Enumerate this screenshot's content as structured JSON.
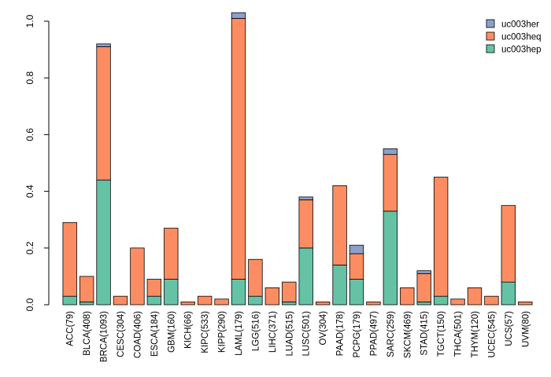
{
  "chart_data": {
    "type": "bar",
    "stacked": true,
    "title": "",
    "xlabel": "",
    "ylabel": "",
    "ylim": [
      0,
      1.0
    ],
    "yticks": [
      "0.0",
      "0.2",
      "0.4",
      "0.6",
      "0.8",
      "1.0"
    ],
    "ytick_values": [
      0,
      0.2,
      0.4,
      0.6,
      0.8,
      1.0
    ],
    "legend_position": "top-right",
    "categories": [
      "ACC(79)",
      "BLCA(408)",
      "BRCA(1093)",
      "CESC(304)",
      "COAD(406)",
      "ESCA(184)",
      "GBM(160)",
      "KICH(66)",
      "KIPC(533)",
      "KIPP(290)",
      "LAML(179)",
      "LGG(516)",
      "LIHC(371)",
      "LUAD(515)",
      "LUSC(501)",
      "OV(304)",
      "PAAD(178)",
      "PCPG(179)",
      "PPAD(497)",
      "SARC(259)",
      "SKCM(469)",
      "STAD(415)",
      "TGCT(150)",
      "THCA(501)",
      "THYM(120)",
      "UCEC(545)",
      "UCS(57)",
      "UVM(80)"
    ],
    "series": [
      {
        "name": "uc003hep",
        "color": "#66c2a5",
        "values": [
          0.03,
          0.01,
          0.44,
          0.0,
          0.0,
          0.03,
          0.09,
          0.0,
          0.0,
          0.0,
          0.09,
          0.03,
          0.0,
          0.01,
          0.2,
          0.0,
          0.14,
          0.09,
          0.0,
          0.33,
          0.0,
          0.01,
          0.03,
          0.0,
          0.0,
          0.0,
          0.08,
          0.0
        ]
      },
      {
        "name": "uc003heq",
        "color": "#fc8d62",
        "values": [
          0.26,
          0.09,
          0.47,
          0.03,
          0.2,
          0.06,
          0.18,
          0.01,
          0.03,
          0.02,
          0.92,
          0.13,
          0.06,
          0.07,
          0.17,
          0.01,
          0.28,
          0.09,
          0.01,
          0.2,
          0.06,
          0.1,
          0.42,
          0.02,
          0.06,
          0.03,
          0.27,
          0.01
        ]
      },
      {
        "name": "uc003her",
        "color": "#8da0cb",
        "values": [
          0.0,
          0.0,
          0.01,
          0.0,
          0.0,
          0.0,
          0.0,
          0.0,
          0.0,
          0.0,
          0.02,
          0.0,
          0.0,
          0.0,
          0.01,
          0.0,
          0.0,
          0.03,
          0.0,
          0.02,
          0.0,
          0.01,
          0.0,
          0.0,
          0.0,
          0.0,
          0.0,
          0.0
        ]
      }
    ],
    "legend_order": [
      "uc003her",
      "uc003heq",
      "uc003hep"
    ]
  }
}
